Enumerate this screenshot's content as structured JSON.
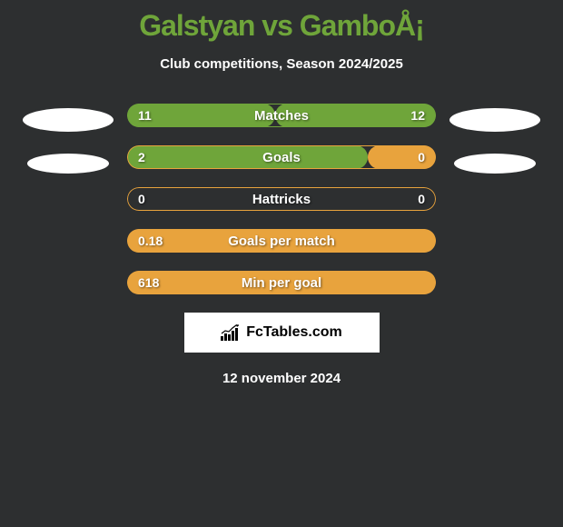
{
  "title": "Galstyan vs GamboÅ¡",
  "subtitle": "Club competitions, Season 2024/2025",
  "stats": [
    {
      "label": "Matches",
      "left_value": "11",
      "right_value": "12",
      "fill_percent": 48,
      "fill_color": "#6fa53a",
      "outline_color": "#6fa53a",
      "right_fill_color": "#6fa53a",
      "right_fill": true
    },
    {
      "label": "Goals",
      "left_value": "2",
      "right_value": "0",
      "fill_percent": 78,
      "fill_color": "#6fa53a",
      "outline_color": "#e8a33d",
      "right_fill_color": "#e8a33d",
      "right_fill": true
    },
    {
      "label": "Hattricks",
      "left_value": "0",
      "right_value": "0",
      "fill_percent": 0,
      "fill_color": "#e8a33d",
      "outline_color": "#e8a33d",
      "right_fill_color": "#e8a33d",
      "right_fill": false
    },
    {
      "label": "Goals per match",
      "left_value": "0.18",
      "right_value": "",
      "fill_percent": 100,
      "fill_color": "#e8a33d",
      "outline_color": "#e8a33d",
      "right_fill_color": "#e8a33d",
      "right_fill": false
    },
    {
      "label": "Min per goal",
      "left_value": "618",
      "right_value": "",
      "fill_percent": 100,
      "fill_color": "#e8a33d",
      "outline_color": "#e8a33d",
      "right_fill_color": "#e8a33d",
      "right_fill": false
    }
  ],
  "logo": {
    "text": "FcTables.com"
  },
  "date": "12 november 2024",
  "colors": {
    "background": "#2d2f30",
    "title_color": "#6fa53a",
    "text_color": "#ffffff",
    "green": "#6fa53a",
    "orange": "#e8a33d"
  }
}
